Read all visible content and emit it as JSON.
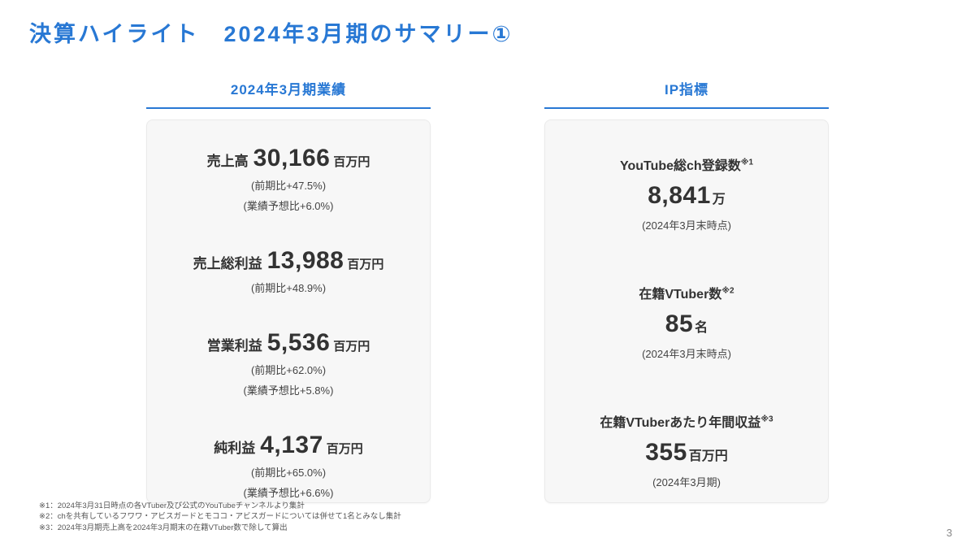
{
  "page": {
    "title": "決算ハイライト　2024年3月期のサマリー①",
    "page_number": "3"
  },
  "colors": {
    "accent_blue": "#2878D4",
    "card_background": "#F7F7F7",
    "text_dark": "#333333"
  },
  "financials": {
    "header": "2024年3月期業績",
    "metrics": [
      {
        "label": "売上高",
        "value": "30,166",
        "unit": "百万円",
        "notes": [
          "(前期比+47.5%)",
          "(業績予想比+6.0%)"
        ]
      },
      {
        "label": "売上総利益",
        "value": "13,988",
        "unit": "百万円",
        "notes": [
          "(前期比+48.9%)"
        ]
      },
      {
        "label": "営業利益",
        "value": "5,536",
        "unit": "百万円",
        "notes": [
          "(前期比+62.0%)",
          "(業績予想比+5.8%)"
        ]
      },
      {
        "label": "純利益",
        "value": "4,137",
        "unit": "百万円",
        "notes": [
          "(前期比+65.0%)",
          "(業績予想比+6.6%)"
        ]
      }
    ]
  },
  "ip_metrics": {
    "header": "IP指標",
    "groups": [
      {
        "label": "YouTube総ch登録数",
        "ref": "※1",
        "value": "8,841",
        "unit": "万",
        "note": "(2024年3月末時点)"
      },
      {
        "label": "在籍VTuber数",
        "ref": "※2",
        "value": "85",
        "unit": "名",
        "note": "(2024年3月末時点)"
      },
      {
        "label": "在籍VTuberあたり年間収益",
        "ref": "※3",
        "value": "355",
        "unit": "百万円",
        "note": "(2024年3月期)"
      }
    ]
  },
  "footnotes": [
    "※1：2024年3月31日時点の各VTuber及び公式のYouTubeチャンネルより集計",
    "※2：chを共有しているフワワ・アビスガードとモココ・アビスガードについては併せて1名とみなし集計",
    "※3：2024年3月期売上高を2024年3月期末の在籍VTuber数で除して算出"
  ]
}
